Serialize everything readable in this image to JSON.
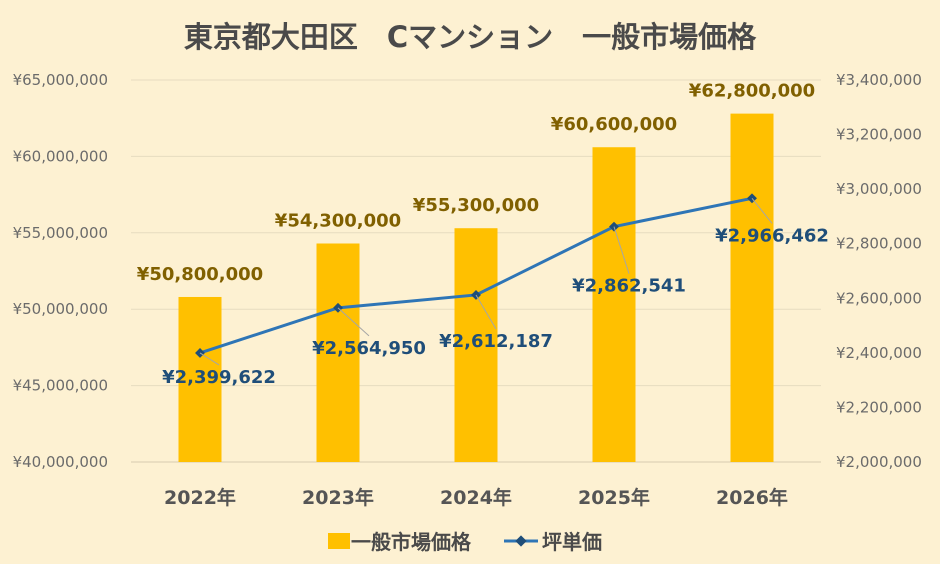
{
  "chart_data": {
    "type": "bar",
    "title": "東京都大田区　Cマンション　一般市場価格",
    "categories": [
      "2022年",
      "2023年",
      "2024年",
      "2025年",
      "2026年"
    ],
    "series": [
      {
        "name": "一般市場価格",
        "type": "bar",
        "axis": "left",
        "values": [
          50800000,
          54300000,
          55300000,
          60600000,
          62800000
        ],
        "labels": [
          "¥50,800,000",
          "¥54,300,000",
          "¥55,300,000",
          "¥60,600,000",
          "¥62,800,000"
        ],
        "color": "#ffc000"
      },
      {
        "name": "坪単価",
        "type": "line",
        "axis": "right",
        "values": [
          2399622,
          2564950,
          2612187,
          2862541,
          2966462
        ],
        "labels": [
          "¥2,399,622",
          "¥2,564,950",
          "¥2,612,187",
          "¥2,862,541",
          "¥2,966,462"
        ],
        "color": "#2e75b6"
      }
    ],
    "y_left": {
      "min": 40000000,
      "max": 65000000,
      "ticks": [
        "¥40,000,000",
        "¥45,000,000",
        "¥50,000,000",
        "¥55,000,000",
        "¥60,000,000",
        "¥65,000,000"
      ]
    },
    "y_right": {
      "min": 2000000,
      "max": 3400000,
      "ticks": [
        "¥2,000,000",
        "¥2,200,000",
        "¥2,400,000",
        "¥2,600,000",
        "¥2,800,000",
        "¥3,000,000",
        "¥3,200,000",
        "¥3,400,000"
      ]
    },
    "grid": true,
    "legend": "bottom"
  }
}
